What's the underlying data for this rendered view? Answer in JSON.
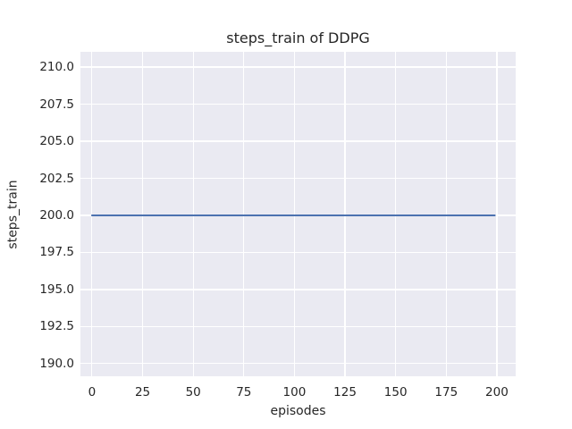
{
  "chart_data": {
    "type": "line",
    "title": "steps_train of DDPG",
    "xlabel": "episodes",
    "ylabel": "steps_train",
    "series": [
      {
        "name": "steps_train",
        "x": [
          0,
          199
        ],
        "y": [
          200,
          200
        ]
      }
    ],
    "xlim": [
      -5.7,
      209.3
    ],
    "ylim": [
      189.15,
      211.03
    ],
    "xticks": {
      "values": [
        0,
        25,
        50,
        75,
        100,
        125,
        150,
        175,
        200
      ],
      "labels": [
        "0",
        "25",
        "50",
        "75",
        "100",
        "125",
        "150",
        "175",
        "200"
      ]
    },
    "yticks": {
      "values": [
        190,
        192.5,
        195,
        197.5,
        200,
        202.5,
        205,
        207.5,
        210
      ],
      "labels": [
        "190.0",
        "192.5",
        "195.0",
        "197.5",
        "200.0",
        "202.5",
        "205.0",
        "207.5",
        "210.0"
      ]
    },
    "grid": true,
    "legend": false,
    "line_width": 2,
    "colors": {
      "line": "#4c72b0",
      "plot_background": "#eaeaf2",
      "grid": "#ffffff",
      "text": "#262626",
      "figure_background": "#ffffff"
    }
  }
}
